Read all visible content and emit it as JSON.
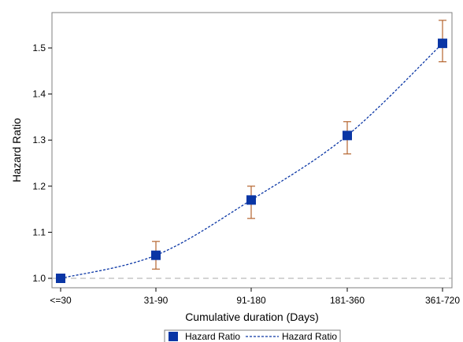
{
  "chart_data": {
    "type": "line",
    "xlabel": "Cumulative duration (Days)",
    "ylabel": "Hazard Ratio",
    "categories": [
      "<=30",
      "31-90",
      "91-180",
      "181-360",
      "361-720"
    ],
    "ylim": [
      0.98,
      1.575
    ],
    "yticks": [
      "1.0",
      "1.1",
      "1.2",
      "1.3",
      "1.4",
      "1.5"
    ],
    "reference_line": 1.0,
    "grid": false,
    "legend_position": "bottom",
    "series": [
      {
        "name": "Hazard Ratio",
        "marker": "square",
        "line_style": "dashed",
        "values": [
          1.0,
          1.05,
          1.17,
          1.31,
          1.51
        ],
        "ci_lower": [
          1.0,
          1.02,
          1.13,
          1.27,
          1.47
        ],
        "ci_upper": [
          1.0,
          1.08,
          1.2,
          1.34,
          1.56
        ]
      }
    ],
    "legend": [
      {
        "label": "Hazard Ratio",
        "symbol": "square"
      },
      {
        "label": "Hazard Ratio",
        "symbol": "dashed-line"
      }
    ],
    "colors": {
      "series": "#0a36a5",
      "error_bar": "#b5652f",
      "reference": "#a8a8a8",
      "frame": "#7f7f7f"
    }
  }
}
